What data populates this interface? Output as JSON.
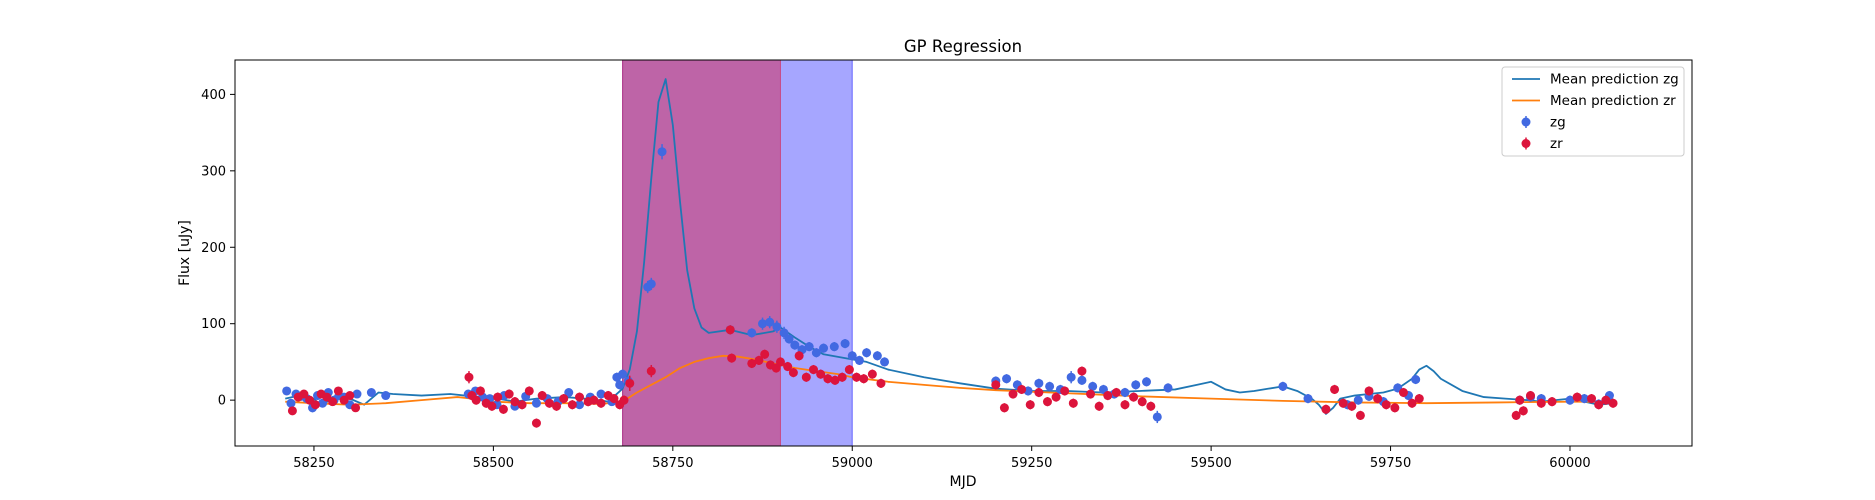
{
  "chart_data": {
    "type": "scatter",
    "title": "GP Regression",
    "xlabel": "MJD",
    "ylabel": "Flux [uJy]",
    "xlim": [
      58140,
      60170
    ],
    "ylim": [
      -60,
      445
    ],
    "x_ticks": [
      58250,
      58500,
      58750,
      59000,
      59250,
      59500,
      59750,
      60000
    ],
    "y_ticks": [
      0,
      100,
      200,
      300,
      400
    ],
    "legend_position": "top-right",
    "grid": false,
    "shaded_regions": [
      {
        "x": [
          58680,
          59000
        ],
        "color": "#0000ff",
        "alpha": 0.35
      },
      {
        "x": [
          58680,
          58900
        ],
        "color": "#dc143c",
        "alpha": 0.45
      }
    ],
    "series": [
      {
        "name": "Mean prediction zg",
        "kind": "line",
        "color": "#1f77b4",
        "x": [
          58210,
          58230,
          58250,
          58260,
          58280,
          58300,
          58320,
          58340,
          58360,
          58400,
          58440,
          58470,
          58500,
          58530,
          58560,
          58600,
          58640,
          58660,
          58680,
          58690,
          58700,
          58710,
          58720,
          58730,
          58740,
          58750,
          58760,
          58770,
          58780,
          58790,
          58800,
          58830,
          58860,
          58890,
          58900,
          58920,
          58940,
          58960,
          58990,
          59020,
          59050,
          59100,
          59150,
          59200,
          59250,
          59300,
          59350,
          59400,
          59450,
          59480,
          59500,
          59520,
          59540,
          59560,
          59580,
          59600,
          59620,
          59640,
          59650,
          59660,
          59670,
          59680,
          59700,
          59720,
          59740,
          59760,
          59780,
          59790,
          59800,
          59810,
          59820,
          59850,
          59880,
          59910,
          59940,
          59960,
          59980,
          60000,
          60020,
          60040,
          60060
        ],
        "y": [
          2,
          6,
          2,
          -8,
          6,
          2,
          -6,
          10,
          8,
          6,
          8,
          5,
          3,
          -2,
          2,
          4,
          1,
          -2,
          15,
          40,
          90,
          180,
          290,
          390,
          420,
          360,
          260,
          170,
          120,
          95,
          88,
          92,
          85,
          90,
          95,
          82,
          70,
          60,
          55,
          50,
          40,
          30,
          22,
          15,
          12,
          12,
          10,
          12,
          14,
          20,
          24,
          14,
          10,
          12,
          15,
          18,
          12,
          2,
          -6,
          -18,
          -10,
          2,
          6,
          8,
          10,
          15,
          28,
          40,
          45,
          38,
          28,
          12,
          4,
          2,
          0,
          -2,
          0,
          2,
          -2,
          -6,
          -4
        ]
      },
      {
        "name": "Mean prediction zr",
        "kind": "line",
        "color": "#ff7f0e",
        "x": [
          58210,
          58250,
          58300,
          58350,
          58400,
          58450,
          58470,
          58500,
          58550,
          58600,
          58650,
          58680,
          58700,
          58720,
          58740,
          58760,
          58780,
          58800,
          58820,
          58840,
          58860,
          58880,
          58900,
          58920,
          58950,
          58980,
          59000,
          59050,
          59100,
          59150,
          59200,
          59250,
          59300,
          59400,
          59500,
          59600,
          59700,
          59800,
          59900,
          60000,
          60060
        ],
        "y": [
          -2,
          -4,
          -6,
          -4,
          0,
          4,
          2,
          -2,
          -4,
          -4,
          -5,
          -2,
          10,
          20,
          30,
          42,
          50,
          55,
          58,
          57,
          54,
          50,
          46,
          42,
          38,
          34,
          30,
          24,
          20,
          16,
          13,
          11,
          9,
          5,
          2,
          -1,
          -3,
          -4,
          -3,
          -2,
          -2
        ]
      },
      {
        "name": "zg",
        "kind": "errorbar",
        "color": "#4169e1",
        "x": [
          58212,
          58218,
          58225,
          58232,
          58240,
          58248,
          58255,
          58262,
          58270,
          58278,
          58285,
          58292,
          58300,
          58310,
          58330,
          58350,
          58465,
          58475,
          58485,
          58495,
          58505,
          58515,
          58530,
          58545,
          58560,
          58575,
          58590,
          58605,
          58620,
          58635,
          58650,
          58665,
          58672,
          58676,
          58680,
          58688,
          58715,
          58720,
          58735,
          58830,
          58860,
          58875,
          58885,
          58895,
          58905,
          58912,
          58920,
          58930,
          58940,
          58950,
          58960,
          58975,
          58990,
          59000,
          59010,
          59020,
          59035,
          59045,
          59200,
          59215,
          59230,
          59245,
          59260,
          59275,
          59290,
          59305,
          59320,
          59335,
          59350,
          59365,
          59380,
          59395,
          59410,
          59425,
          59440,
          59600,
          59635,
          59690,
          59705,
          59720,
          59740,
          59760,
          59775,
          59785,
          59930,
          59945,
          59960,
          60000,
          60020,
          60040,
          60055
        ],
        "y": [
          12,
          -4,
          8,
          5,
          2,
          -10,
          6,
          -4,
          10,
          0,
          6,
          4,
          -6,
          8,
          10,
          6,
          8,
          12,
          4,
          2,
          -6,
          6,
          -8,
          5,
          -4,
          2,
          -2,
          10,
          -6,
          4,
          8,
          -2,
          30,
          20,
          34,
          25,
          148,
          152,
          325,
          92,
          88,
          100,
          102,
          96,
          88,
          80,
          72,
          66,
          70,
          62,
          68,
          70,
          74,
          58,
          52,
          62,
          58,
          50,
          25,
          28,
          20,
          12,
          22,
          18,
          14,
          30,
          26,
          18,
          14,
          8,
          10,
          20,
          24,
          -22,
          16,
          18,
          2,
          -6,
          0,
          5,
          -2,
          16,
          6,
          27,
          0,
          4,
          2,
          0,
          2,
          -5,
          6
        ],
        "yerr": [
          4,
          4,
          4,
          4,
          4,
          6,
          4,
          5,
          4,
          4,
          4,
          4,
          5,
          4,
          4,
          4,
          5,
          4,
          4,
          4,
          5,
          4,
          5,
          4,
          4,
          4,
          5,
          4,
          5,
          4,
          4,
          5,
          6,
          6,
          6,
          6,
          8,
          8,
          10,
          6,
          6,
          8,
          8,
          8,
          8,
          6,
          6,
          6,
          6,
          6,
          6,
          6,
          6,
          6,
          6,
          6,
          6,
          6,
          6,
          6,
          6,
          6,
          6,
          6,
          6,
          8,
          6,
          6,
          6,
          6,
          6,
          6,
          6,
          8,
          6,
          6,
          6,
          6,
          6,
          6,
          6,
          6,
          6,
          6,
          6,
          6,
          6,
          6,
          6,
          6,
          6
        ]
      },
      {
        "name": "zr",
        "kind": "errorbar",
        "color": "#dc143c",
        "x": [
          58220,
          58228,
          58236,
          58244,
          58252,
          58260,
          58268,
          58276,
          58284,
          58292,
          58300,
          58308,
          58466,
          58470,
          58476,
          58482,
          58490,
          58498,
          58506,
          58514,
          58522,
          58530,
          58540,
          58550,
          58560,
          58568,
          58578,
          58588,
          58598,
          58610,
          58620,
          58632,
          58640,
          58650,
          58660,
          58668,
          58676,
          58682,
          58690,
          58720,
          58830,
          58832,
          58860,
          58870,
          58878,
          58886,
          58894,
          58900,
          58910,
          58918,
          58926,
          58936,
          58946,
          58956,
          58966,
          58976,
          58986,
          58996,
          59006,
          59016,
          59028,
          59040,
          59200,
          59212,
          59224,
          59236,
          59248,
          59260,
          59272,
          59284,
          59296,
          59308,
          59320,
          59332,
          59344,
          59356,
          59368,
          59380,
          59392,
          59404,
          59416,
          59660,
          59672,
          59684,
          59696,
          59708,
          59720,
          59732,
          59744,
          59756,
          59768,
          59780,
          59790,
          59925,
          59930,
          59935,
          59945,
          59960,
          59975,
          60010,
          60030,
          60040,
          60050,
          60060
        ],
        "y": [
          -14,
          4,
          8,
          0,
          -6,
          8,
          4,
          -2,
          12,
          0,
          6,
          -10,
          30,
          6,
          0,
          12,
          -4,
          -8,
          4,
          -12,
          8,
          -2,
          -6,
          12,
          -30,
          6,
          -4,
          -8,
          2,
          -6,
          4,
          -2,
          0,
          -4,
          6,
          2,
          -6,
          0,
          22,
          38,
          92,
          55,
          48,
          52,
          60,
          46,
          42,
          50,
          44,
          36,
          58,
          30,
          40,
          34,
          28,
          26,
          30,
          40,
          30,
          28,
          34,
          22,
          20,
          -10,
          8,
          14,
          -6,
          10,
          -2,
          4,
          12,
          -4,
          38,
          8,
          -8,
          6,
          10,
          -6,
          4,
          -2,
          -8,
          -12,
          14,
          -4,
          -8,
          -20,
          12,
          2,
          -6,
          -10,
          10,
          -4,
          2,
          -20,
          0,
          -14,
          6,
          -4,
          -2,
          4,
          2,
          -6,
          0,
          -4
        ],
        "yerr": [
          4,
          4,
          4,
          4,
          4,
          4,
          4,
          4,
          4,
          4,
          4,
          4,
          8,
          6,
          6,
          6,
          6,
          6,
          6,
          6,
          6,
          6,
          6,
          6,
          6,
          6,
          6,
          6,
          6,
          6,
          6,
          6,
          6,
          6,
          6,
          6,
          6,
          6,
          10,
          8,
          6,
          6,
          6,
          6,
          6,
          6,
          6,
          6,
          6,
          6,
          6,
          6,
          6,
          6,
          6,
          6,
          6,
          6,
          6,
          6,
          6,
          6,
          6,
          6,
          6,
          6,
          6,
          6,
          6,
          6,
          6,
          6,
          6,
          6,
          6,
          6,
          6,
          6,
          6,
          6,
          6,
          6,
          6,
          6,
          6,
          6,
          6,
          6,
          6,
          6,
          6,
          6,
          6,
          6,
          6,
          6,
          6,
          6,
          6,
          6,
          6,
          6,
          6,
          6
        ]
      }
    ]
  }
}
